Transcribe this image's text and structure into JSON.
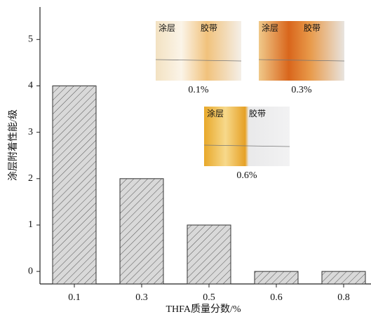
{
  "chart_data": {
    "type": "bar",
    "categories": [
      "0.1",
      "0.3",
      "0.5",
      "0.6",
      "0.8"
    ],
    "values": [
      4,
      2,
      1,
      0,
      0
    ],
    "color": "#d9d9d9",
    "x_label": "THFA质量分数/%",
    "y_label": "涂层附着性能/级",
    "ylim": [
      -0.27,
      5.7
    ],
    "yticks": [
      0,
      1,
      2,
      3,
      4,
      5
    ],
    "insets": [
      {
        "label": "0.1%",
        "coating": "涂层",
        "tape": "胶带"
      },
      {
        "label": "0.3%",
        "coating": "涂层",
        "tape": "胶带"
      },
      {
        "label": "0.6%",
        "coating": "涂层",
        "tape": "胶带"
      }
    ]
  }
}
